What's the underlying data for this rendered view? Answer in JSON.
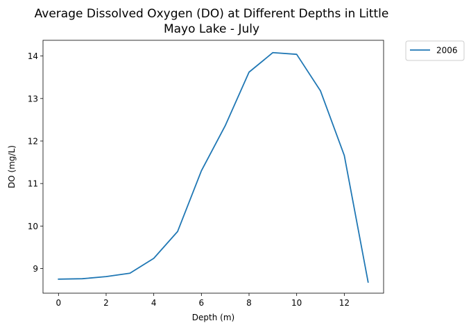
{
  "chart_data": {
    "type": "line",
    "title": "Average Dissolved Oxygen (DO) at Different Depths in Little Mayo Lake - July",
    "title_lines": [
      "Average Dissolved Oxygen (DO) at Different Depths in Little",
      "Mayo Lake - July"
    ],
    "xlabel": "Depth (m)",
    "ylabel": "DO (mg/L)",
    "x": [
      0,
      1,
      2,
      3,
      4,
      5,
      6,
      7,
      8,
      9,
      10,
      11,
      12,
      13
    ],
    "series": [
      {
        "name": "2006",
        "color": "#1f77b4",
        "values": [
          8.75,
          8.76,
          8.81,
          8.89,
          9.24,
          9.87,
          11.3,
          12.36,
          13.62,
          14.08,
          14.04,
          13.18,
          11.66,
          8.68
        ]
      }
    ],
    "xlim": [
      -0.65,
      13.65
    ],
    "ylim": [
      8.42,
      14.37
    ],
    "xticks": [
      0,
      2,
      4,
      6,
      8,
      10,
      12
    ],
    "yticks": [
      9,
      10,
      11,
      12,
      13,
      14
    ],
    "grid": false,
    "legend_position": "outside-top-right"
  }
}
